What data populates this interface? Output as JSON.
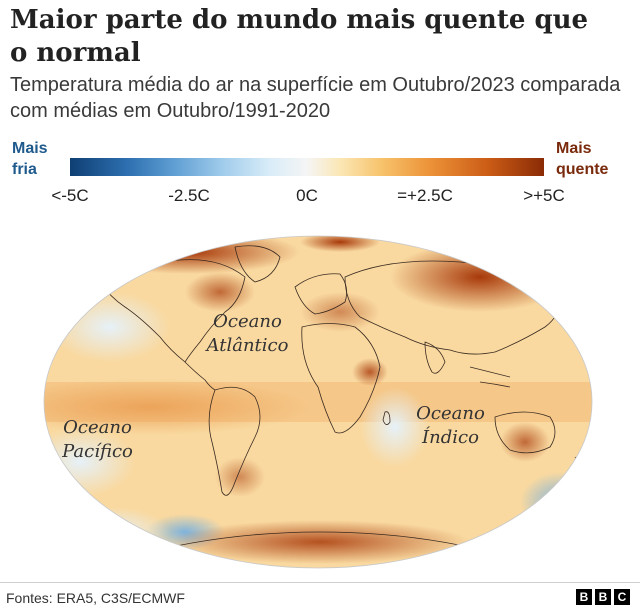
{
  "title": "Maior parte do mundo mais quente que o normal",
  "subtitle": "Temperatura média do ar na superfície em Outubro/2023 comparada com médias em Outubro/1991-2020",
  "legend": {
    "cold_label": "Mais fria",
    "warm_label": "Mais quente",
    "ticks": [
      "<-5C",
      "-2.5C",
      "0C",
      "=+2.5C",
      ">+5C"
    ],
    "colors": {
      "cold_extreme": "#0f3f73",
      "neutral": "#f5f5f5",
      "warm_extreme": "#8a2b06"
    }
  },
  "map": {
    "ocean_labels": {
      "atlantic": "Oceano Atlântico",
      "pacific": "Oceano Pacífico",
      "indian": "Oceano Índico"
    }
  },
  "footer": {
    "source": "Fontes: ERA5, C3S/ECMWF",
    "logo_letters": [
      "B",
      "B",
      "C"
    ]
  }
}
